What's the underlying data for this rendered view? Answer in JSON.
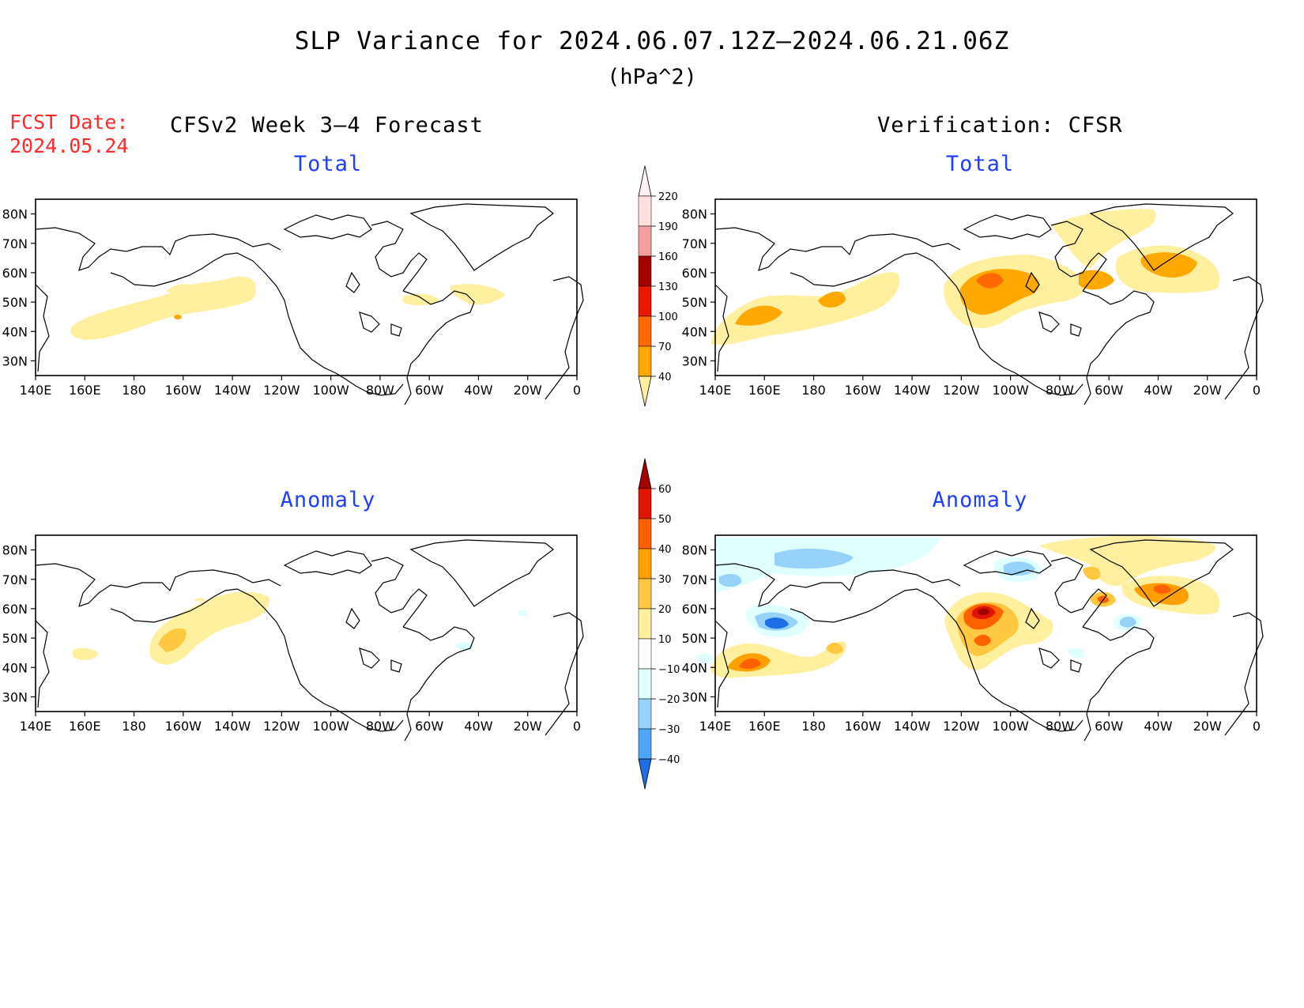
{
  "header": {
    "title": "SLP Variance for 2024.06.07.12Z–2024.06.21.06Z",
    "units": "(hPa^2)",
    "fcst_label": "FCST Date:",
    "fcst_date": "2024.05.24"
  },
  "columns": {
    "left_title": "CFSv2 Week 3–4 Forecast",
    "right_title": "Verification: CFSR"
  },
  "panels": {
    "total_label": "Total",
    "anomaly_label": "Anomaly"
  },
  "axes": {
    "lat_labels": [
      "80N",
      "70N",
      "60N",
      "50N",
      "40N",
      "30N"
    ],
    "lon_labels": [
      "140E",
      "160E",
      "180",
      "160W",
      "140W",
      "120W",
      "100W",
      "80W",
      "60W",
      "40W",
      "20W",
      "0"
    ]
  },
  "colorbars": {
    "total": {
      "levels": [
        "40",
        "70",
        "100",
        "130",
        "160",
        "190",
        "220"
      ],
      "colors": [
        "#fff0a0",
        "#ffa800",
        "#ff6a00",
        "#e81800",
        "#a50000",
        "#f3a0a0",
        "#ffdede",
        "#fff4f4"
      ]
    },
    "anomaly": {
      "levels": [
        "60",
        "50",
        "40",
        "30",
        "20",
        "10",
        "−10",
        "−20",
        "−30",
        "−40"
      ],
      "colors": [
        "#a50000",
        "#e01400",
        "#ff6000",
        "#ffa000",
        "#ffc840",
        "#fff0a0",
        "#ffffff",
        "#e0ffff",
        "#96d2fa",
        "#50a5f5",
        "#1e6ee6"
      ]
    }
  },
  "colors": {
    "fcst_text": "#ff2a2a",
    "panel_title": "#1f3fff"
  }
}
